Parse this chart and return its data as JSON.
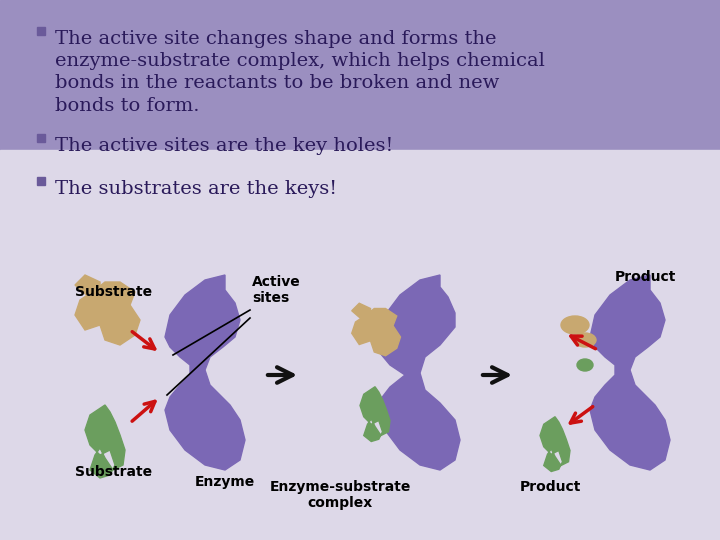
{
  "bg_top_color": "#9b8fc0",
  "bg_bottom_color": "#ddd8e8",
  "bullet_color": "#6a5a9a",
  "text_color": "#2a1a5a",
  "bullet1_line1": "The active site changes shape and forms the",
  "bullet1_line2": "enzyme-substrate complex, which helps chemical",
  "bullet1_line3": "bonds in the reactants to be broken and new",
  "bullet1_line4": "bonds to form.",
  "bullet2": "The active sites are the key holes!",
  "bullet3": "The substrates are the keys!",
  "purple_color": "#7b68b5",
  "tan_color": "#c8a870",
  "green_color": "#6b9e5e",
  "red_arrow_color": "#cc1111",
  "black_arrow_color": "#111111",
  "label_substrate_top": "Substrate",
  "label_substrate_bottom": "Substrate",
  "label_enzyme": "Enzyme",
  "label_active_sites": "Active\nsites",
  "label_esc": "Enzyme-substrate\ncomplex",
  "label_product_top": "Product",
  "label_product_bottom": "Product",
  "font_size_bullet": 14,
  "font_size_label": 11
}
